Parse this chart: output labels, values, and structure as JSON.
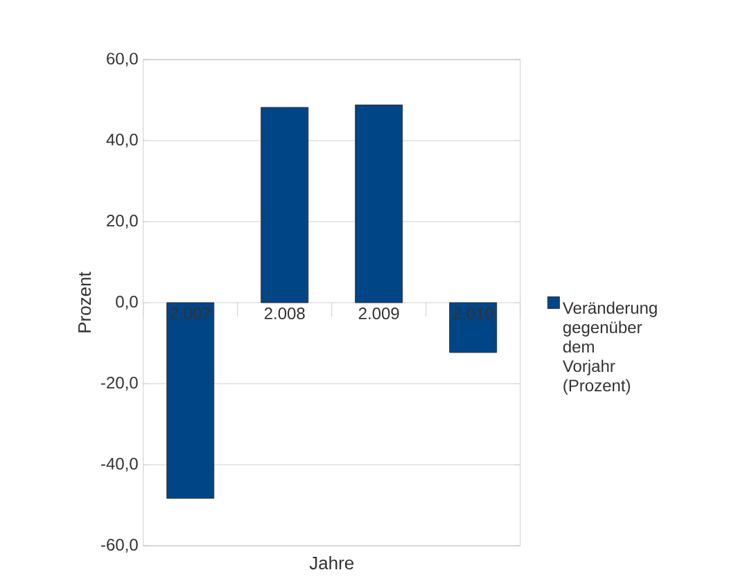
{
  "chart_data": {
    "type": "bar",
    "xlabel": "Jahre",
    "ylabel": "Prozent",
    "categories": [
      "2.007",
      "2.008",
      "2.009",
      "2.010"
    ],
    "series": [
      {
        "name": "Veränderung gegenüber dem Vorjahr (Prozent)",
        "color": "#004586",
        "values": [
          -48.3,
          48.2,
          48.8,
          -12.3
        ]
      }
    ],
    "ylim": [
      -60,
      60
    ],
    "yticks": [
      {
        "value": -60,
        "label": "-60,0"
      },
      {
        "value": -40,
        "label": "-40,0"
      },
      {
        "value": -20,
        "label": "-20,0"
      },
      {
        "value": 0,
        "label": "0,0"
      },
      {
        "value": 20,
        "label": "20,0"
      },
      {
        "value": 40,
        "label": "40,0"
      },
      {
        "value": 60,
        "label": "60,0"
      }
    ],
    "grid": "y",
    "legend": "right"
  }
}
